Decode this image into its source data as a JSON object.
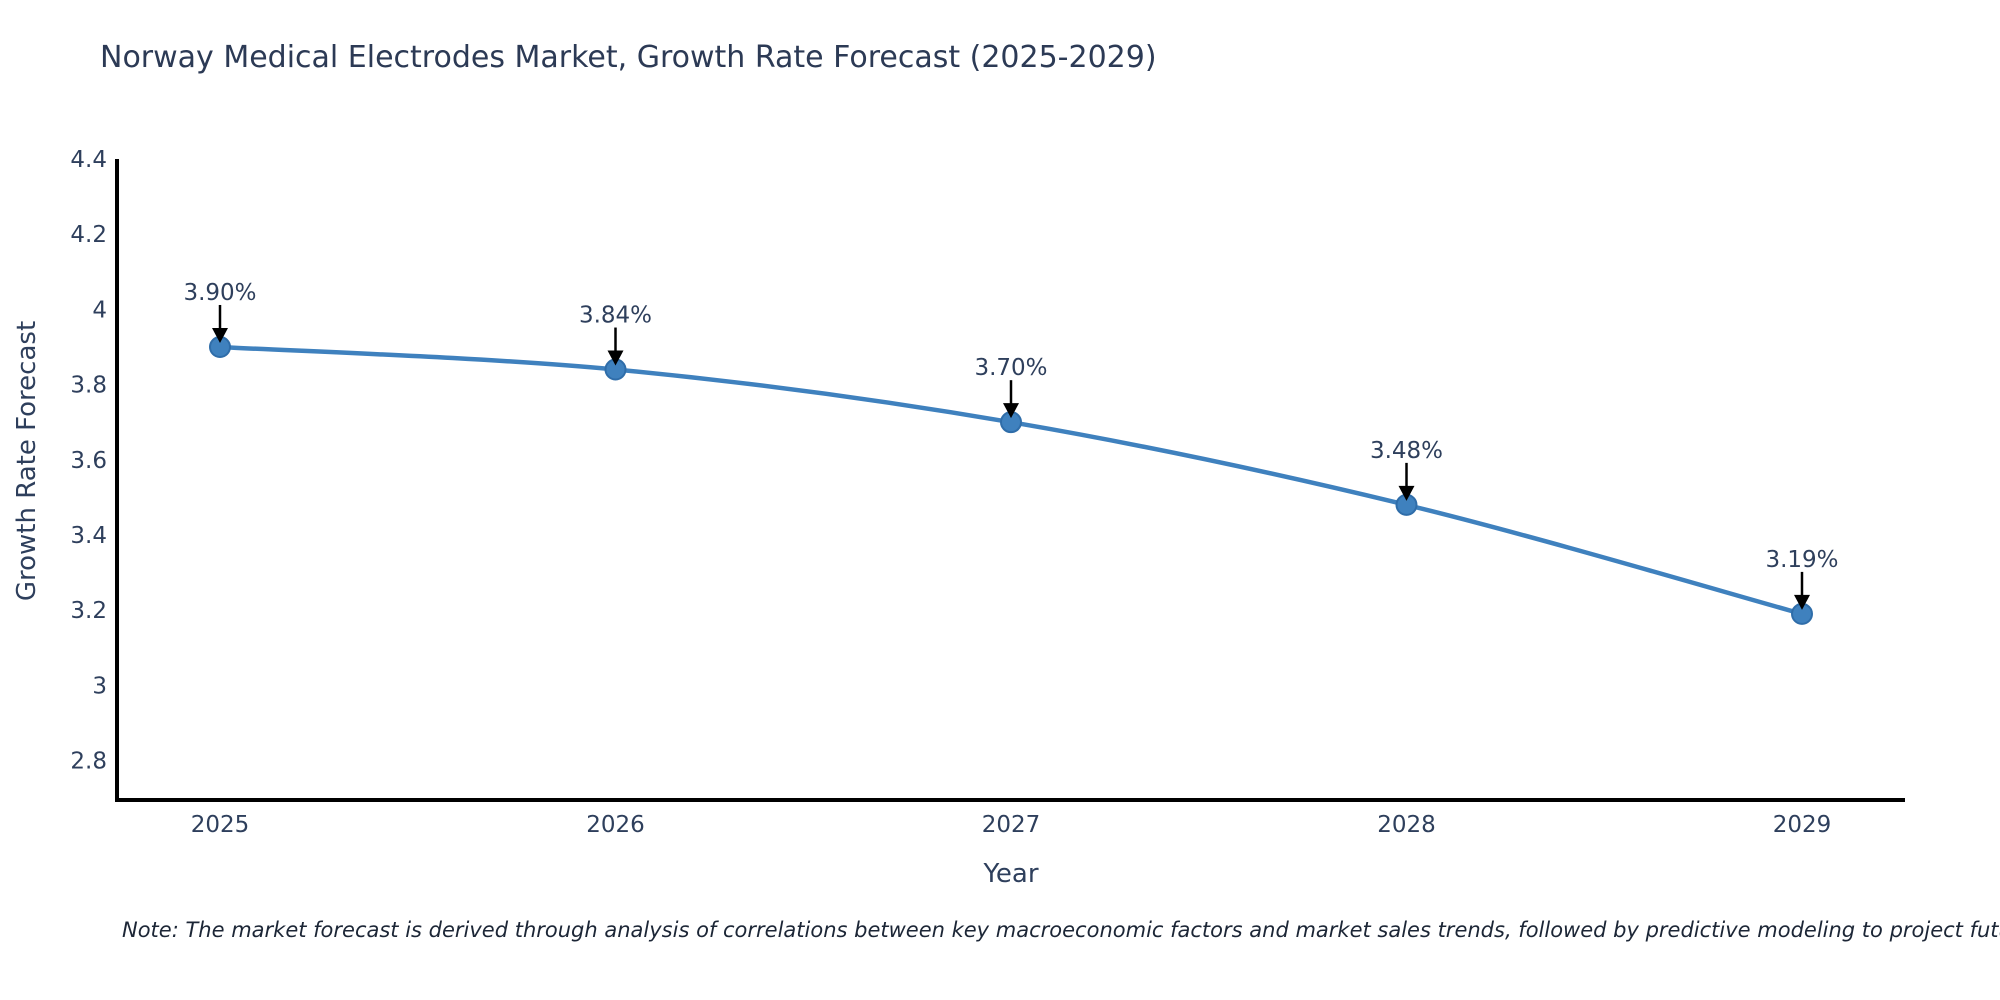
{
  "chart_data": {
    "type": "line",
    "title": "Norway Medical Electrodes Market, Growth Rate Forecast (2025-2029)",
    "xlabel": "Year",
    "ylabel": "Growth Rate Forecast",
    "categories": [
      "2025",
      "2026",
      "2027",
      "2028",
      "2029"
    ],
    "values": [
      3.9,
      3.84,
      3.7,
      3.48,
      3.19
    ],
    "point_labels": [
      "3.90%",
      "3.84%",
      "3.70%",
      "3.48%",
      "3.19%"
    ],
    "ytick_labels": [
      "4.4",
      "4.2",
      "4",
      "3.8",
      "3.6",
      "3.4",
      "3.2",
      "3",
      "2.8"
    ],
    "ytick_values": [
      4.4,
      4.2,
      4.0,
      3.8,
      3.6,
      3.4,
      3.2,
      3.0,
      2.8
    ],
    "ylim": [
      2.695,
      4.4
    ],
    "grid": false,
    "legend_position": "none",
    "line_shape": "spline",
    "colors": {
      "line": "#3f81be",
      "marker_fill": "#3f81be",
      "marker_edge": "#2f6da9",
      "axis": "#000000",
      "tick_text": "#2e3f5c",
      "annotation_text": "#2e3f5c",
      "annotation_arrow": "#000000",
      "title_text": "#2c3a55"
    }
  },
  "note": {
    "text": "Note: The market forecast is derived through analysis of correlations between key macroeconomic factors and market sales trends, followed by predictive modeling to project future sales"
  }
}
